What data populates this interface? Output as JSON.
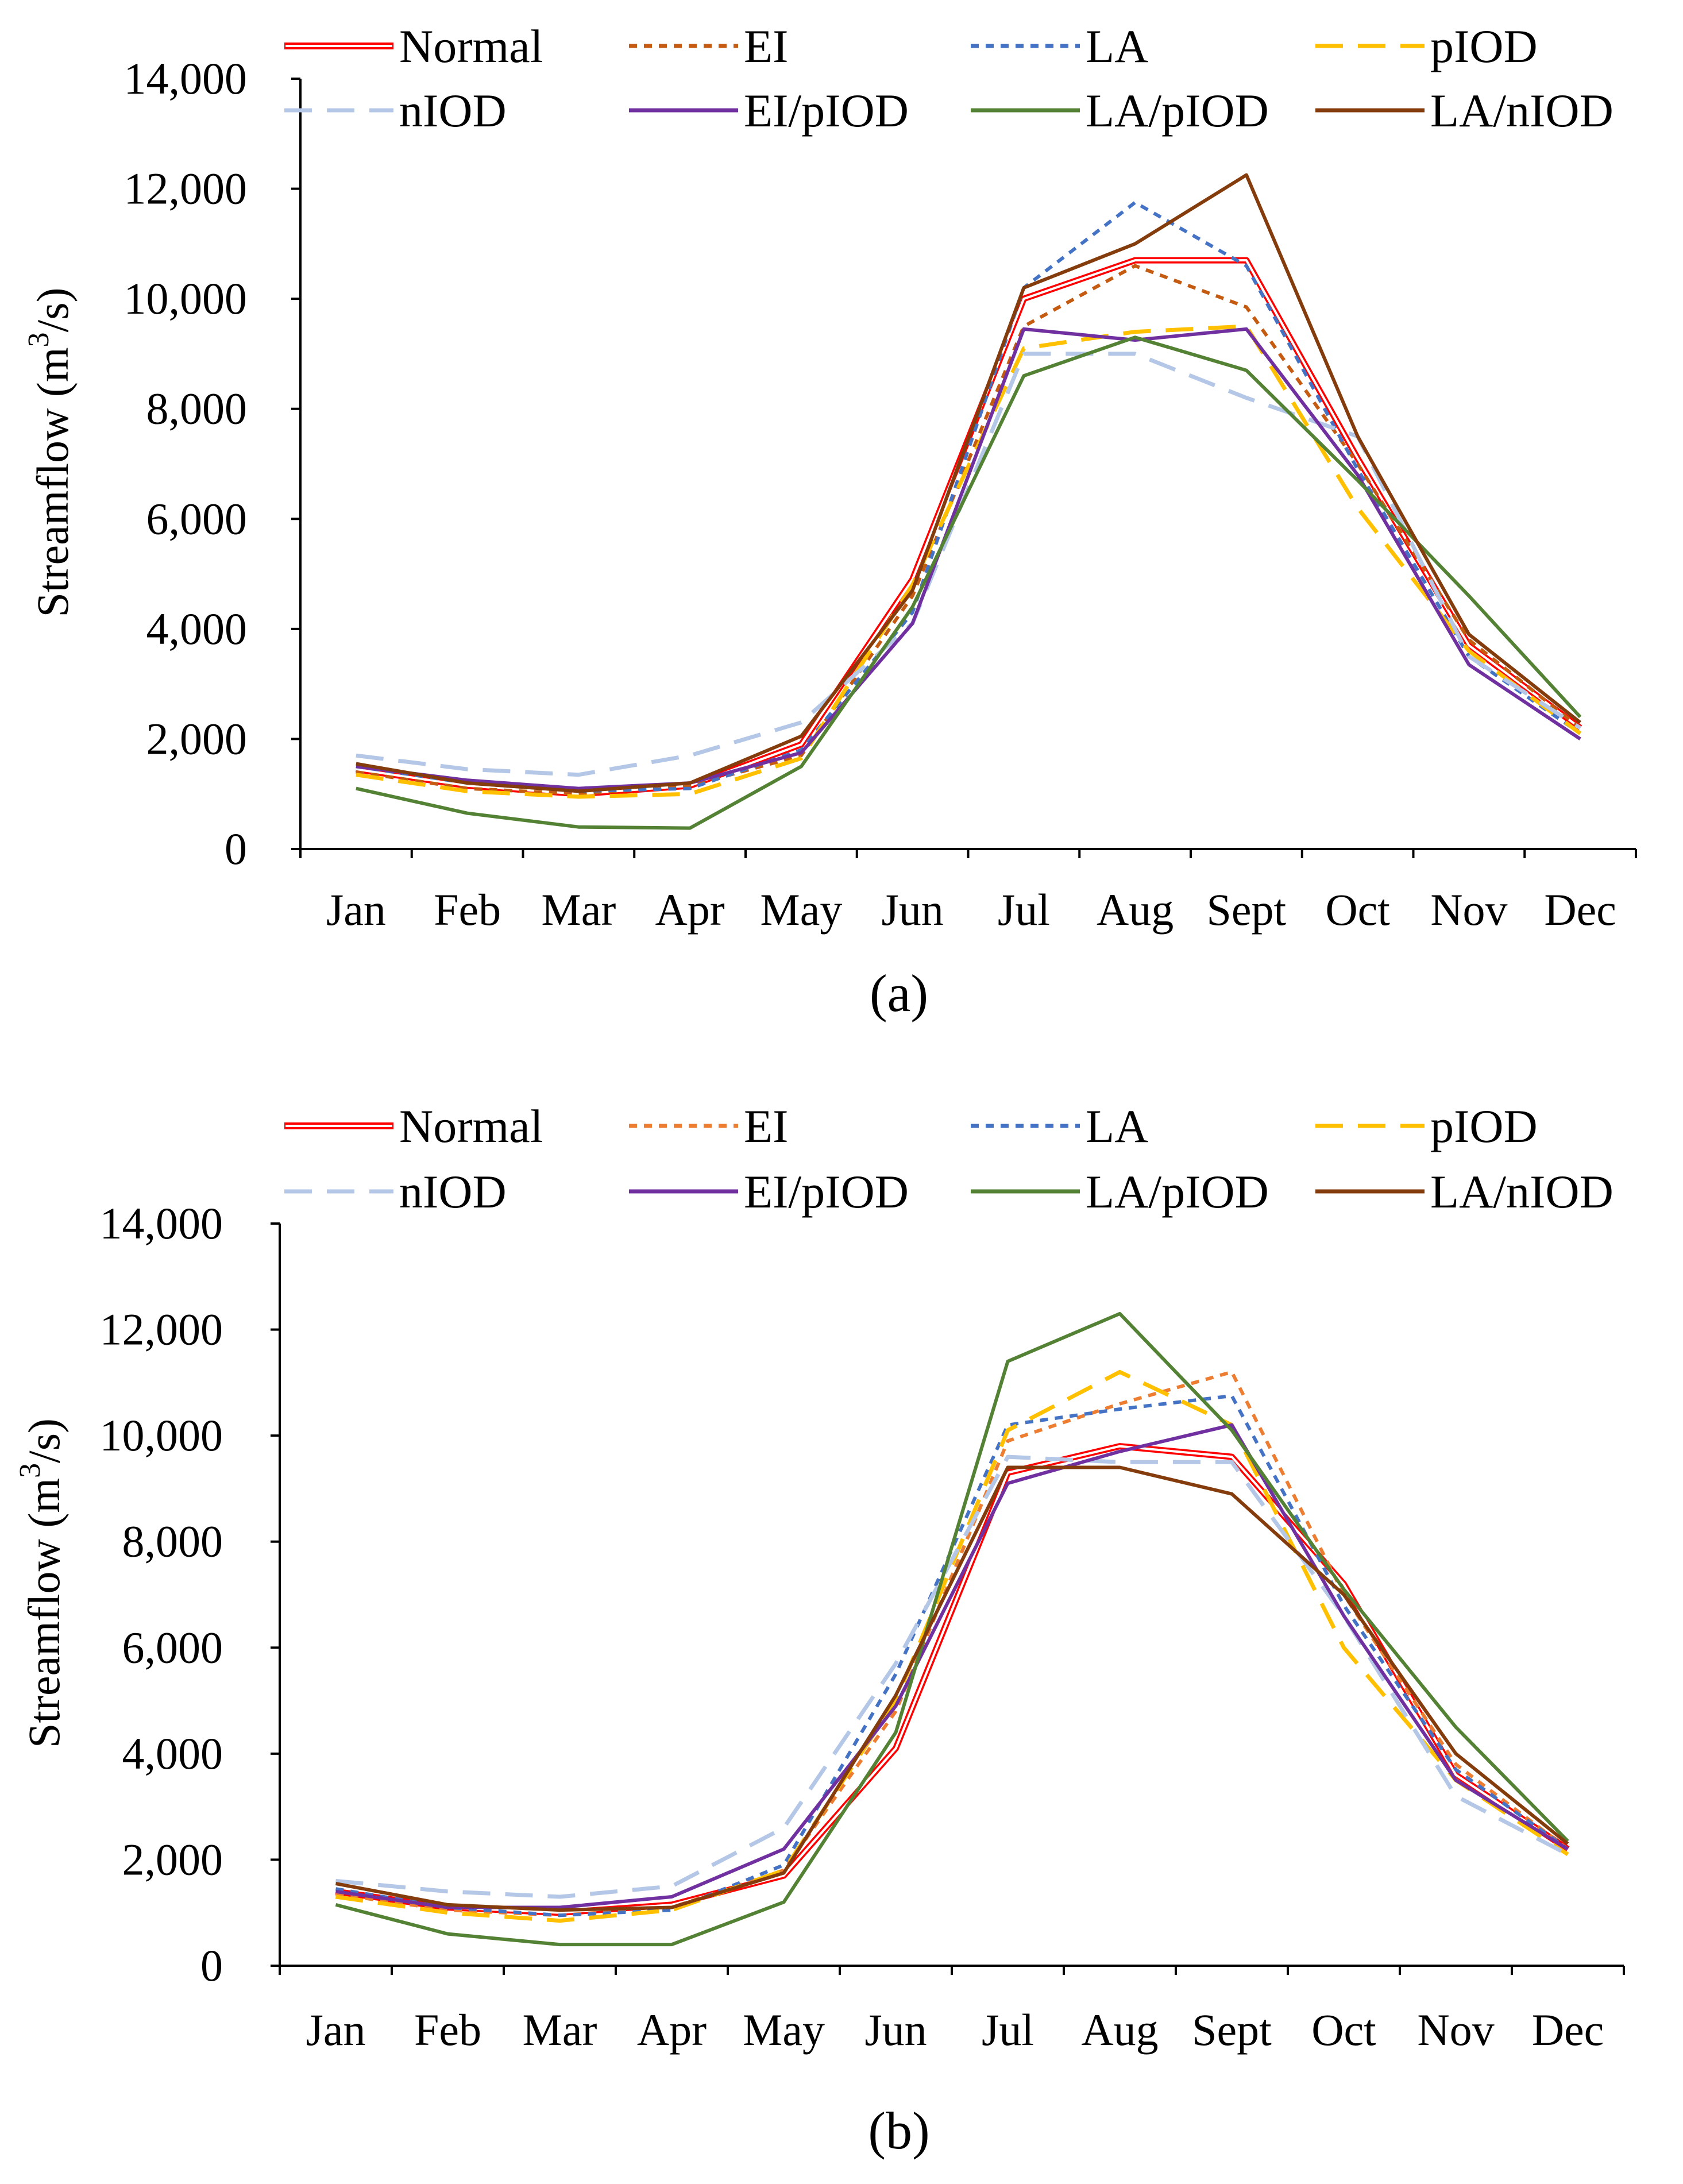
{
  "chart_data": [
    {
      "type": "line",
      "caption": "(a)",
      "ylabel": "Streamflow (m3/s)",
      "ylabel_parts": {
        "main": "Streamflow (m",
        "sup": "3",
        "tail": "/s)"
      },
      "ylim": [
        0,
        14000
      ],
      "yticks": [
        0,
        2000,
        4000,
        6000,
        8000,
        10000,
        12000,
        14000
      ],
      "ytick_labels": [
        "0",
        "2,000",
        "4,000",
        "6,000",
        "8,000",
        "10,000",
        "12,000",
        "14,000"
      ],
      "categories": [
        "Jan",
        "Feb",
        "Mar",
        "Apr",
        "May",
        "Jun",
        "Jul",
        "Aug",
        "Sept",
        "Oct",
        "Nov",
        "Dec"
      ],
      "legend": "top",
      "series": [
        {
          "name": "Normal",
          "style": "double",
          "color": "#ff0000",
          "values": [
            1450,
            1150,
            1000,
            1150,
            1900,
            4900,
            10000,
            10700,
            10700,
            7100,
            3700,
            2200
          ]
        },
        {
          "name": "EI",
          "style": "dot",
          "color": "#c55a11",
          "values": [
            1400,
            1100,
            1000,
            1150,
            1700,
            4600,
            9500,
            10600,
            9850,
            7000,
            3800,
            2200
          ]
        },
        {
          "name": "LA",
          "style": "dot",
          "color": "#4472c4",
          "values": [
            1500,
            1200,
            1050,
            1100,
            1800,
            4300,
            10200,
            11750,
            10600,
            6900,
            3500,
            2100
          ]
        },
        {
          "name": "pIOD",
          "style": "dash",
          "color": "#ffc000",
          "values": [
            1350,
            1050,
            950,
            1000,
            1650,
            4800,
            9100,
            9400,
            9500,
            6200,
            3600,
            2100
          ]
        },
        {
          "name": "nIOD",
          "style": "dash",
          "color": "#b4c7e7",
          "values": [
            1700,
            1450,
            1350,
            1700,
            2300,
            4100,
            9000,
            9000,
            8200,
            7500,
            3500,
            2200
          ]
        },
        {
          "name": "EI/pIOD",
          "style": "solid",
          "color": "#7030a0",
          "values": [
            1500,
            1250,
            1100,
            1200,
            1750,
            4100,
            9450,
            9250,
            9450,
            6800,
            3350,
            2000
          ]
        },
        {
          "name": "LA/pIOD",
          "style": "solid",
          "color": "#548235",
          "values": [
            1100,
            650,
            400,
            380,
            1500,
            4400,
            8600,
            9300,
            8700,
            6700,
            4600,
            2400
          ]
        },
        {
          "name": "LA/nIOD",
          "style": "solid",
          "color": "#843c0c",
          "values": [
            1550,
            1200,
            1050,
            1200,
            2050,
            4700,
            10200,
            11000,
            12250,
            7500,
            3900,
            2300
          ]
        }
      ]
    },
    {
      "type": "line",
      "caption": "(b)",
      "ylabel": "Streamflow (m3/s)",
      "ylabel_parts": {
        "main": "Streamflow (m",
        "sup": "3",
        "tail": "/s)"
      },
      "ylim": [
        0,
        14000
      ],
      "yticks": [
        0,
        2000,
        4000,
        6000,
        8000,
        10000,
        12000,
        14000
      ],
      "ytick_labels": [
        "0",
        "2,000",
        "4,000",
        "6,000",
        "8,000",
        "10,000",
        "12,000",
        "14,000"
      ],
      "categories": [
        "Jan",
        "Feb",
        "Mar",
        "Apr",
        "May",
        "Jun",
        "Jul",
        "Aug",
        "Sept",
        "Oct",
        "Nov",
        "Dec"
      ],
      "legend": "top",
      "series": [
        {
          "name": "Normal",
          "style": "double",
          "color": "#ff0000",
          "values": [
            1400,
            1100,
            1000,
            1150,
            1700,
            4100,
            9300,
            9800,
            9600,
            7200,
            3600,
            2200
          ]
        },
        {
          "name": "EI",
          "style": "dot",
          "color": "#ed7d31",
          "values": [
            1350,
            1050,
            950,
            1100,
            1800,
            4800,
            9900,
            10600,
            11200,
            7000,
            3800,
            2200
          ]
        },
        {
          "name": "LA",
          "style": "dot",
          "color": "#4472c4",
          "values": [
            1450,
            1100,
            950,
            1050,
            1900,
            5500,
            10200,
            10500,
            10750,
            6800,
            3700,
            2200
          ]
        },
        {
          "name": "pIOD",
          "style": "dash",
          "color": "#ffc000",
          "values": [
            1300,
            1000,
            850,
            1050,
            1800,
            5000,
            10100,
            11200,
            10200,
            6000,
            3500,
            2100
          ]
        },
        {
          "name": "nIOD",
          "style": "dash",
          "color": "#b4c7e7",
          "values": [
            1600,
            1400,
            1300,
            1500,
            2600,
            5700,
            9600,
            9500,
            9500,
            6600,
            3200,
            2100
          ]
        },
        {
          "name": "EI/pIOD",
          "style": "solid",
          "color": "#7030a0",
          "values": [
            1400,
            1100,
            1100,
            1300,
            2200,
            4900,
            9100,
            9700,
            10200,
            6600,
            3500,
            2200
          ]
        },
        {
          "name": "LA/pIOD",
          "style": "solid",
          "color": "#548235",
          "values": [
            1150,
            600,
            400,
            400,
            1200,
            4400,
            11400,
            12300,
            10100,
            7100,
            4500,
            2350
          ]
        },
        {
          "name": "LA/nIOD",
          "style": "solid",
          "color": "#843c0c",
          "values": [
            1550,
            1150,
            1050,
            1100,
            1750,
            5100,
            9400,
            9400,
            8900,
            7000,
            4000,
            2300
          ]
        }
      ]
    }
  ]
}
